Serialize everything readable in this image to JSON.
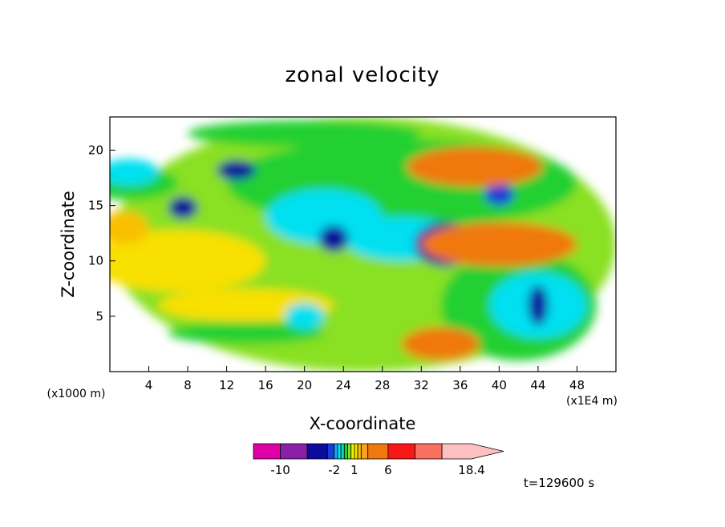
{
  "chart_data": {
    "type": "heatmap",
    "title": "zonal velocity",
    "xlabel": "X-coordinate",
    "ylabel": "Z-coordinate",
    "x_unit": "(x1E4 m)",
    "y_unit": "(x1000 m)",
    "xlim": [
      0,
      52
    ],
    "ylim": [
      0,
      23
    ],
    "x_ticks": [
      4,
      8,
      12,
      16,
      20,
      24,
      28,
      32,
      36,
      40,
      44,
      48
    ],
    "y_ticks": [
      5,
      10,
      15,
      20
    ],
    "time_label": "t=129600 s",
    "colorbar": {
      "levels": [
        -14,
        -10,
        -6,
        -3,
        -2,
        -1.5,
        -1,
        -0.5,
        0,
        0.5,
        1,
        1.5,
        2,
        3,
        6,
        10,
        14,
        18.4
      ],
      "labels": [
        "-10",
        "-2",
        "1",
        "6",
        "18.4"
      ],
      "label_values": [
        -10,
        -2,
        1,
        6,
        18.4
      ],
      "colors": [
        "#e000a8",
        "#8a1fa8",
        "#0c0c9c",
        "#1a3cd8",
        "#19a8f0",
        "#00e0f0",
        "#10d8b0",
        "#20d030",
        "#8ae020",
        "#ecf800",
        "#f8e000",
        "#f8c000",
        "#f8a020",
        "#f07810",
        "#f81818",
        "#f87060",
        "#fcc0c0"
      ]
    },
    "regions": [
      {
        "level": 0.3,
        "x": 26,
        "z": 11.5,
        "rx": 26,
        "rz": 11.5
      },
      {
        "level": 1.0,
        "x": 7,
        "z": 10,
        "rx": 9,
        "rz": 2.8
      },
      {
        "level": 1.0,
        "x": 14,
        "z": 6,
        "rx": 9,
        "rz": 1.5
      },
      {
        "level": 1.5,
        "x": 1.5,
        "z": 13,
        "rx": 2.5,
        "rz": 1.5
      },
      {
        "level": -0.3,
        "x": 30,
        "z": 17,
        "rx": 18,
        "rz": 4
      },
      {
        "level": -0.3,
        "x": 2,
        "z": 17,
        "rx": 5,
        "rz": 1.5
      },
      {
        "level": -0.3,
        "x": 20,
        "z": 21.5,
        "rx": 12,
        "rz": 1.2
      },
      {
        "level": -0.3,
        "x": 42,
        "z": 6,
        "rx": 8,
        "rz": 5
      },
      {
        "level": -0.3,
        "x": 14,
        "z": 3.5,
        "rx": 8,
        "rz": 1
      },
      {
        "level": -1.5,
        "x": 2,
        "z": 18,
        "rx": 3,
        "rz": 1.2
      },
      {
        "level": -1.5,
        "x": 22,
        "z": 14,
        "rx": 6,
        "rz": 2.5
      },
      {
        "level": -1.5,
        "x": 30,
        "z": 12,
        "rx": 6,
        "rz": 2
      },
      {
        "level": -1.5,
        "x": 44,
        "z": 6,
        "rx": 5,
        "rz": 3
      },
      {
        "level": -1.5,
        "x": 20,
        "z": 5,
        "rx": 2,
        "rz": 1.2
      },
      {
        "level": -3.5,
        "x": 13,
        "z": 18.2,
        "rx": 2,
        "rz": 0.9
      },
      {
        "level": -3.5,
        "x": 7.5,
        "z": 14.8,
        "rx": 1.5,
        "rz": 1
      },
      {
        "level": -3.5,
        "x": 23,
        "z": 12,
        "rx": 1.5,
        "rz": 1.2
      },
      {
        "level": -6,
        "x": 34.5,
        "z": 11.5,
        "rx": 3.2,
        "rz": 2
      },
      {
        "level": -6,
        "x": 44,
        "z": 6,
        "rx": 1,
        "rz": 1.8
      },
      {
        "level": -2.5,
        "x": 40,
        "z": 16,
        "rx": 1.5,
        "rz": 1
      },
      {
        "level": 3,
        "x": 40,
        "z": 11.5,
        "rx": 8,
        "rz": 2
      },
      {
        "level": 3,
        "x": 37.5,
        "z": 18.5,
        "rx": 7,
        "rz": 1.8
      },
      {
        "level": 3,
        "x": 34,
        "z": 2.5,
        "rx": 4,
        "rz": 1.5
      },
      {
        "level": 5,
        "x": 40,
        "z": 12,
        "rx": 3,
        "rz": 1
      }
    ]
  }
}
